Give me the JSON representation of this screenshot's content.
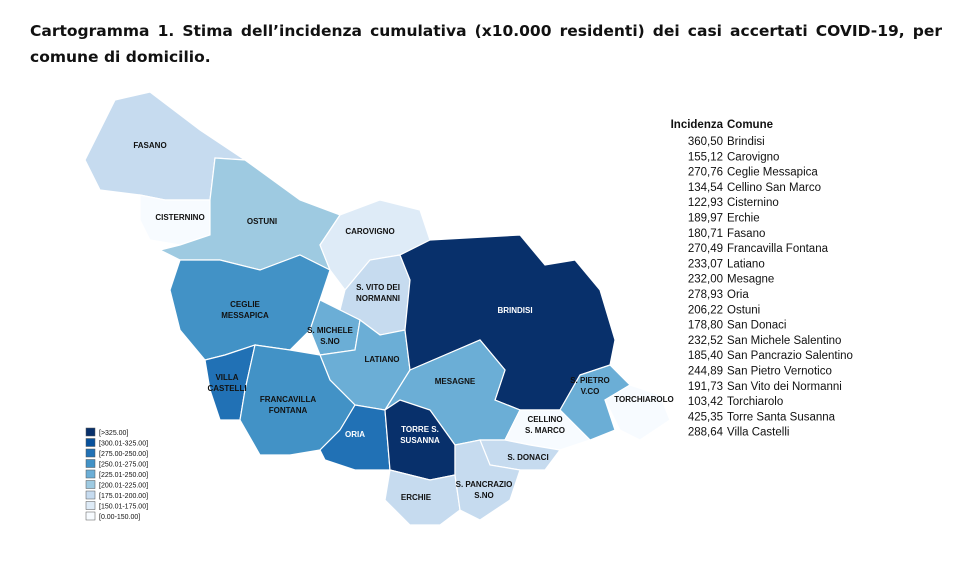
{
  "title": "Cartogramma 1. Stima dell’incidenza cumulativa (x10.000 residenti) dei casi accertati COVID-19, per comune di domicilio.",
  "map": {
    "labels": [
      [
        "FASANO"
      ],
      [
        "CISTERNINO"
      ],
      [
        "OSTUNI"
      ],
      [
        "CAROVIGNO"
      ],
      [
        "CEGLIE",
        "MESSAPICA"
      ],
      [
        "S. VITO DEI",
        "NORMANNI"
      ],
      [
        "S. MICHELE",
        "S.NO"
      ],
      [
        "BRINDISI"
      ],
      [
        "LATIANO"
      ],
      [
        "VILLA",
        "CASTELLI"
      ],
      [
        "FRANCAVILLA",
        "FONTANA"
      ],
      [
        "MESAGNE"
      ],
      [
        "S. PIETRO",
        "V.CO"
      ],
      [
        "TORCHIAROLO"
      ],
      [
        "CELLINO",
        "S. MARCO"
      ],
      [
        "ORIA"
      ],
      [
        "TORRE S.",
        "SUSANNA"
      ],
      [
        "S. DONACI"
      ],
      [
        "ERCHIE"
      ],
      [
        "S. PANCRAZIO",
        "S.NO"
      ]
    ],
    "legend": [
      "[>325.00]",
      "[300.01-325.00]",
      "[275.00-250.00]",
      "[250.01-275.00]",
      "[225.01-250.00]",
      "[200.01-225.00]",
      "[175.01-200.00]",
      "[150.01-175.00]",
      "[0.00-150.00]"
    ]
  },
  "table": {
    "header": [
      "Incidenza",
      "Comune"
    ],
    "rows": [
      [
        "360,50",
        "Brindisi"
      ],
      [
        "155,12",
        "Carovigno"
      ],
      [
        "270,76",
        "Ceglie Messapica"
      ],
      [
        "134,54",
        "Cellino San Marco"
      ],
      [
        "122,93",
        "Cisternino"
      ],
      [
        "189,97",
        "Erchie"
      ],
      [
        "180,71",
        "Fasano"
      ],
      [
        "270,49",
        "Francavilla Fontana"
      ],
      [
        "233,07",
        "Latiano"
      ],
      [
        "232,00",
        "Mesagne"
      ],
      [
        "278,93",
        "Oria"
      ],
      [
        "206,22",
        "Ostuni"
      ],
      [
        "178,80",
        "San Donaci"
      ],
      [
        "232,52",
        "San Michele Salentino"
      ],
      [
        "185,40",
        "San Pancrazio Salentino"
      ],
      [
        "244,89",
        "San Pietro Vernotico"
      ],
      [
        "191,73",
        "San Vito dei Normanni"
      ],
      [
        "103,42",
        "Torchiarolo"
      ],
      [
        "425,35",
        "Torre Santa Susanna"
      ],
      [
        "288,64",
        "Villa Castelli"
      ]
    ]
  }
}
